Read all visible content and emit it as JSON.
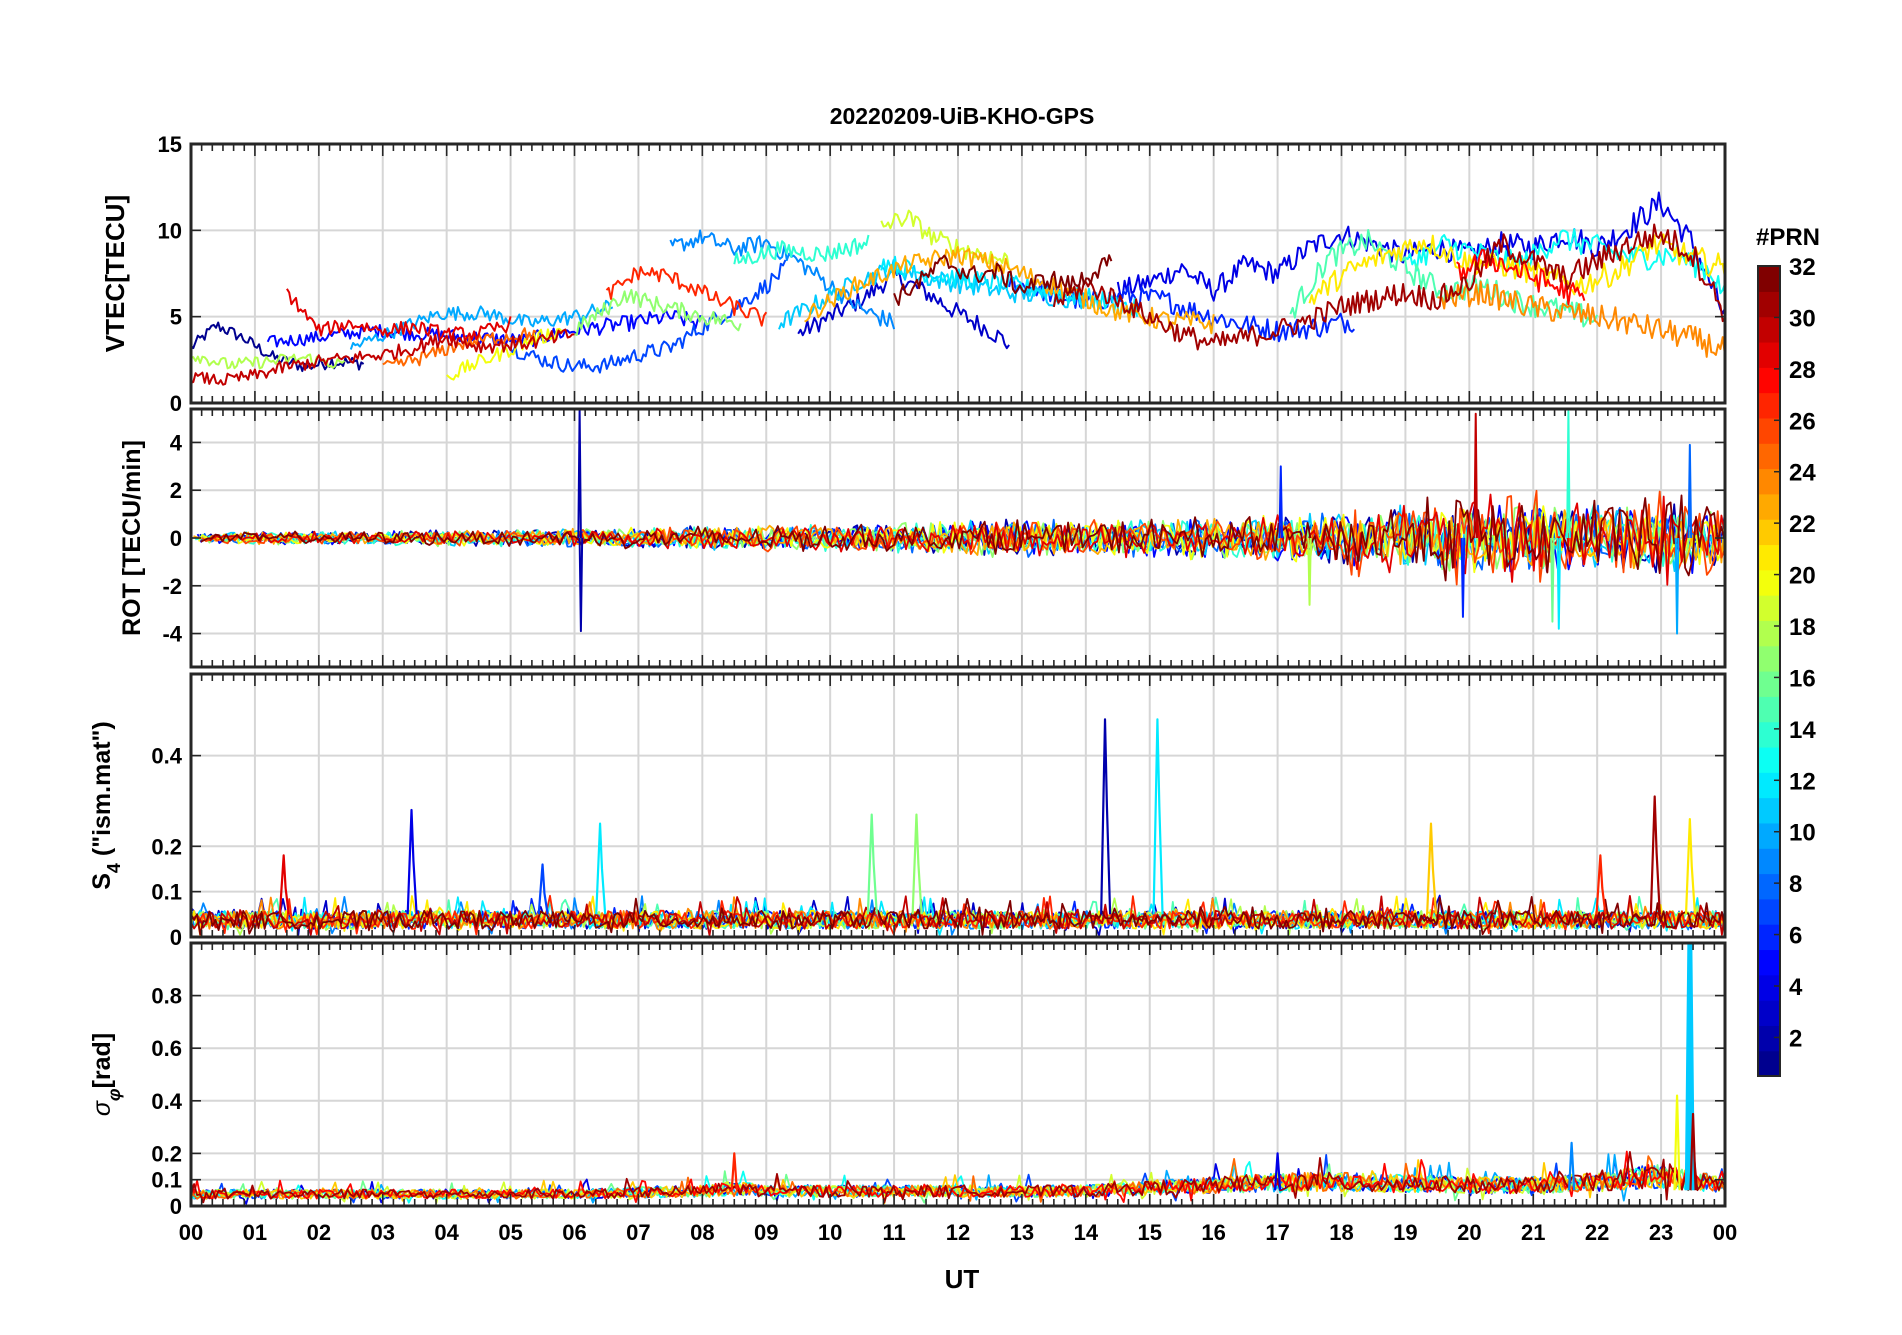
{
  "figure": {
    "title": "20220209-UiB-KHO-GPS",
    "xlabel": "UT",
    "x_ticks": [
      "00",
      "01",
      "02",
      "03",
      "04",
      "05",
      "06",
      "07",
      "08",
      "09",
      "10",
      "11",
      "12",
      "13",
      "14",
      "15",
      "16",
      "17",
      "18",
      "19",
      "20",
      "21",
      "22",
      "23",
      "00"
    ],
    "xlim": [
      0,
      24
    ]
  },
  "colorbar": {
    "title": "#PRN",
    "range": [
      1,
      32
    ],
    "ticks": [
      2,
      4,
      6,
      8,
      10,
      12,
      14,
      16,
      18,
      20,
      22,
      24,
      26,
      28,
      30,
      32
    ],
    "colormap": "jet",
    "jet_stops": [
      "#00008f",
      "#0000ff",
      "#00ffff",
      "#ffff00",
      "#ff0000",
      "#800000"
    ]
  },
  "chart_data": [
    {
      "type": "line",
      "panel": "vtec",
      "ylabel": "VTEC[TECU]",
      "ylim": [
        0,
        15
      ],
      "y_ticks": [
        0,
        5,
        10,
        15
      ],
      "grid": true,
      "series": [
        {
          "prn": 1,
          "x": [
            0.0,
            0.4,
            0.8,
            1.3,
            1.8,
            2.2,
            2.7
          ],
          "y": [
            3.2,
            4.5,
            3.8,
            2.6,
            2.1,
            2.4,
            2.3
          ]
        },
        {
          "prn": 3,
          "x": [
            9.5,
            10.0,
            10.5,
            11.0,
            11.5,
            12.0,
            12.5,
            12.8
          ],
          "y": [
            4.0,
            5.0,
            6.0,
            7.4,
            6.4,
            5.2,
            4.2,
            3.4
          ]
        },
        {
          "prn": 4,
          "x": [
            14.5,
            15.0,
            15.5,
            16.0,
            16.5,
            17.0,
            17.5,
            18.0,
            18.5,
            19.0,
            19.5,
            20.0,
            20.5,
            21.0,
            21.5,
            22.0,
            22.5,
            23.0,
            23.5,
            24.0
          ],
          "y": [
            6.5,
            7.0,
            7.8,
            6.5,
            8.0,
            7.5,
            9.0,
            9.8,
            9.2,
            8.5,
            9.0,
            8.6,
            9.2,
            9.0,
            9.8,
            9.0,
            10.2,
            11.6,
            9.2,
            5.0
          ]
        },
        {
          "prn": 5,
          "x": [
            1.2,
            2.0,
            2.8,
            3.6,
            4.4,
            5.2,
            6.0,
            6.8,
            7.5,
            8.0
          ],
          "y": [
            3.5,
            3.8,
            4.2,
            4.0,
            3.8,
            3.6,
            4.2,
            4.6,
            5.0,
            4.6
          ]
        },
        {
          "prn": 6,
          "x": [
            12.8,
            13.4,
            14.0,
            14.6,
            15.2,
            15.8,
            16.4,
            17.0,
            17.6,
            18.2
          ],
          "y": [
            7.0,
            6.4,
            5.8,
            6.2,
            6.0,
            5.2,
            4.6,
            4.2,
            4.4,
            4.8
          ]
        },
        {
          "prn": 7,
          "x": [
            5.0,
            5.5,
            6.0,
            6.5,
            7.0,
            7.5,
            8.0,
            8.5,
            9.0,
            9.3
          ],
          "y": [
            3.2,
            2.5,
            2.1,
            2.2,
            2.8,
            3.2,
            4.4,
            5.5,
            6.8,
            7.8
          ]
        },
        {
          "prn": 9,
          "x": [
            7.5,
            8.0,
            8.5,
            9.0,
            9.5,
            10.0,
            10.5,
            11.0
          ],
          "y": [
            9.0,
            9.6,
            8.9,
            9.3,
            8.2,
            6.8,
            5.4,
            4.6
          ]
        },
        {
          "prn": 10,
          "x": [
            2.5,
            3.2,
            3.9,
            4.6,
            5.3,
            6.0,
            6.6
          ],
          "y": [
            3.2,
            4.2,
            5.2,
            5.2,
            4.6,
            5.0,
            5.6
          ]
        },
        {
          "prn": 11,
          "x": [
            9.2,
            9.8,
            10.4,
            11.0,
            11.6,
            12.2,
            12.8,
            13.4,
            14.0
          ],
          "y": [
            4.6,
            5.8,
            7.0,
            7.8,
            7.2,
            6.8,
            6.4,
            6.2,
            6.0
          ]
        },
        {
          "prn": 12,
          "x": [
            10.8,
            11.4,
            12.0,
            12.6,
            13.2,
            13.8,
            14.4,
            14.8
          ],
          "y": [
            8.2,
            7.6,
            7.2,
            7.0,
            6.6,
            6.2,
            5.8,
            5.4
          ]
        },
        {
          "prn": 13,
          "x": [
            19.0,
            19.6,
            20.2,
            20.8,
            21.4,
            22.0,
            22.6,
            23.2,
            23.8,
            24.0
          ],
          "y": [
            8.0,
            9.2,
            8.6,
            8.0,
            9.6,
            9.0,
            8.4,
            8.6,
            7.6,
            6.2
          ]
        },
        {
          "prn": 14,
          "x": [
            8.5,
            9.2,
            9.9,
            10.6
          ],
          "y": [
            8.2,
            8.9,
            8.6,
            9.3
          ]
        },
        {
          "prn": 15,
          "x": [
            17.2,
            17.8,
            18.4,
            19.0,
            19.6,
            20.2,
            20.8,
            21.4,
            22.0
          ],
          "y": [
            5.2,
            8.4,
            9.4,
            7.8,
            6.4,
            6.8,
            5.8,
            5.4,
            4.8
          ]
        },
        {
          "prn": 17,
          "x": [
            6.0,
            6.4,
            6.8,
            7.2,
            7.6,
            8.0,
            8.6
          ],
          "y": [
            4.2,
            5.2,
            6.3,
            5.8,
            5.4,
            5.0,
            4.6
          ]
        },
        {
          "prn": 18,
          "x": [
            0.0,
            0.6,
            1.2,
            1.8,
            2.4
          ],
          "y": [
            2.8,
            2.2,
            2.4,
            2.6,
            2.2
          ]
        },
        {
          "prn": 19,
          "x": [
            10.8,
            11.2,
            11.6,
            12.0,
            12.4,
            12.8
          ],
          "y": [
            10.2,
            10.8,
            9.6,
            9.0,
            8.6,
            8.2
          ]
        },
        {
          "prn": 20,
          "x": [
            4.0,
            4.4,
            4.8,
            5.3,
            5.8
          ],
          "y": [
            1.5,
            2.2,
            2.8,
            3.6,
            4.2
          ]
        },
        {
          "prn": 21,
          "x": [
            17.5,
            18.1,
            18.7,
            19.3,
            19.9,
            20.5,
            21.1,
            21.7,
            22.3,
            22.9,
            23.5,
            24.0
          ],
          "y": [
            6.0,
            7.6,
            8.6,
            9.4,
            8.2,
            8.0,
            7.4,
            6.8,
            7.6,
            9.2,
            8.4,
            7.8
          ]
        },
        {
          "prn": 23,
          "x": [
            9.6,
            10.4,
            11.2,
            12.0,
            12.8,
            13.6,
            14.4,
            15.2,
            16.0
          ],
          "y": [
            5.0,
            6.8,
            8.0,
            8.6,
            7.8,
            6.6,
            5.4,
            4.8,
            4.6
          ]
        },
        {
          "prn": 24,
          "x": [
            19.5,
            20.2,
            20.9,
            21.6,
            22.3,
            23.0,
            23.6,
            24.0
          ],
          "y": [
            6.0,
            6.4,
            5.6,
            5.2,
            4.8,
            4.2,
            3.6,
            3.0
          ]
        },
        {
          "prn": 25,
          "x": [
            3.0,
            3.6,
            4.2,
            4.8,
            5.4
          ],
          "y": [
            2.0,
            2.6,
            3.4,
            3.8,
            4.0
          ]
        },
        {
          "prn": 27,
          "x": [
            6.5,
            7.0,
            7.4,
            7.8,
            8.2,
            8.6,
            9.0
          ],
          "y": [
            6.2,
            7.6,
            7.4,
            6.8,
            6.0,
            5.4,
            4.8
          ]
        },
        {
          "prn": 28,
          "x": [
            19.8,
            20.3,
            20.8,
            21.3,
            21.8
          ],
          "y": [
            7.5,
            8.4,
            7.6,
            6.8,
            6.0
          ]
        },
        {
          "prn": 29,
          "x": [
            1.5,
            2.0,
            2.5,
            3.0,
            3.5,
            4.0,
            4.5,
            5.0
          ],
          "y": [
            6.4,
            4.2,
            4.6,
            4.2,
            4.4,
            4.0,
            4.0,
            4.6
          ]
        },
        {
          "prn": 30,
          "x": [
            0.0,
            0.5,
            1.0,
            1.5,
            2.0,
            2.5,
            3.0,
            3.5,
            4.0,
            4.5,
            5.0,
            5.5,
            6.0
          ],
          "y": [
            1.5,
            1.3,
            1.6,
            2.1,
            2.4,
            2.6,
            2.8,
            3.2,
            3.8,
            3.3,
            3.4,
            3.6,
            4.0
          ]
        },
        {
          "prn": 31,
          "x": [
            13.5,
            14.0,
            14.5,
            15.0,
            15.5,
            16.0,
            16.5,
            17.0,
            17.5,
            18.0,
            18.5,
            19.0,
            19.5,
            20.0,
            20.5,
            21.0,
            21.5,
            22.0,
            22.5,
            23.0,
            23.5,
            24.0
          ],
          "y": [
            5.8,
            6.8,
            6.0,
            5.0,
            4.0,
            3.4,
            3.8,
            4.2,
            4.8,
            5.6,
            6.0,
            6.4,
            6.0,
            7.0,
            9.2,
            8.2,
            7.2,
            8.2,
            9.2,
            9.8,
            8.6,
            5.2
          ]
        },
        {
          "prn": 32,
          "x": [
            11.0,
            11.4,
            11.8,
            12.2,
            12.6,
            13.0,
            13.4,
            13.8,
            14.2,
            14.4
          ],
          "y": [
            6.0,
            7.0,
            8.2,
            7.4,
            7.6,
            6.6,
            7.2,
            6.8,
            7.8,
            8.0
          ]
        }
      ]
    },
    {
      "type": "line",
      "panel": "rot",
      "ylabel": "ROT [TECU/min]",
      "ylim": [
        -5.4,
        5.4
      ],
      "y_ticks": [
        -4,
        -2,
        0,
        2,
        4
      ],
      "grid": true,
      "envelope": {
        "x": [
          0,
          2,
          4,
          6,
          8,
          10,
          12,
          13,
          14,
          16,
          18,
          19,
          20,
          21,
          22,
          23,
          24
        ],
        "amplitude": [
          0.2,
          0.25,
          0.3,
          0.35,
          0.45,
          0.5,
          0.6,
          0.8,
          0.7,
          0.8,
          1.0,
          1.2,
          1.4,
          1.3,
          1.2,
          1.4,
          1.2
        ]
      },
      "spikes": [
        {
          "prn": 2,
          "x": 6.08,
          "y": 5.4
        },
        {
          "prn": 2,
          "x": 6.1,
          "y": -3.9
        },
        {
          "prn": 6,
          "x": 17.05,
          "y": 3.0
        },
        {
          "prn": 30,
          "x": 20.1,
          "y": 5.2
        },
        {
          "prn": 14,
          "x": 21.55,
          "y": 5.3
        },
        {
          "prn": 12,
          "x": 21.4,
          "y": -3.8
        },
        {
          "prn": 16,
          "x": 21.3,
          "y": -3.5
        },
        {
          "prn": 10,
          "x": 23.25,
          "y": -4.0
        },
        {
          "prn": 8,
          "x": 23.45,
          "y": 3.9
        },
        {
          "prn": 6,
          "x": 19.9,
          "y": -3.3
        },
        {
          "prn": 18,
          "x": 17.5,
          "y": -2.8
        }
      ]
    },
    {
      "type": "line",
      "panel": "s4",
      "ylabel": "S4 (\"ism.mat\")",
      "ylabel_main": "S",
      "ylabel_sub": "4",
      "ylabel_rest": " (\"ism.mat\")",
      "ylim": [
        0,
        0.58
      ],
      "y_ticks": [
        0,
        0.1,
        0.2,
        0.4
      ],
      "grid": true,
      "baseline": {
        "mean": 0.03,
        "spread": 0.04
      },
      "spikes": [
        {
          "prn": 4,
          "x": 3.45,
          "y": 0.28
        },
        {
          "prn": 12,
          "x": 6.4,
          "y": 0.25
        },
        {
          "prn": 16,
          "x": 10.65,
          "y": 0.27
        },
        {
          "prn": 17,
          "x": 11.35,
          "y": 0.27
        },
        {
          "prn": 2,
          "x": 14.3,
          "y": 0.48
        },
        {
          "prn": 12,
          "x": 15.12,
          "y": 0.48
        },
        {
          "prn": 22,
          "x": 19.4,
          "y": 0.25
        },
        {
          "prn": 31,
          "x": 22.9,
          "y": 0.31
        },
        {
          "prn": 21,
          "x": 23.45,
          "y": 0.26
        },
        {
          "prn": 29,
          "x": 1.45,
          "y": 0.18
        },
        {
          "prn": 7,
          "x": 5.5,
          "y": 0.16
        },
        {
          "prn": 27,
          "x": 22.05,
          "y": 0.18
        }
      ]
    },
    {
      "type": "line",
      "panel": "sigma_phi",
      "ylabel": "σφ[rad]",
      "ylabel_main": "σ",
      "ylabel_sub": "φ",
      "ylabel_rest": "[rad]",
      "ylim": [
        0,
        1.0
      ],
      "y_ticks": [
        0,
        0.1,
        0.2,
        0.4,
        0.6,
        0.8
      ],
      "grid": true,
      "baseline": {
        "x": [
          0,
          6,
          8,
          8.5,
          9,
          12,
          14,
          15,
          16,
          17,
          18,
          20,
          21,
          22,
          23,
          24
        ],
        "mean": [
          0.04,
          0.04,
          0.05,
          0.06,
          0.05,
          0.05,
          0.05,
          0.06,
          0.07,
          0.08,
          0.08,
          0.07,
          0.07,
          0.08,
          0.1,
          0.07
        ]
      },
      "spikes": [
        {
          "prn": 11,
          "x": 23.45,
          "y": 1.0
        },
        {
          "prn": 20,
          "x": 23.25,
          "y": 0.42
        },
        {
          "prn": 27,
          "x": 8.5,
          "y": 0.2
        },
        {
          "prn": 31,
          "x": 23.5,
          "y": 0.35
        },
        {
          "prn": 4,
          "x": 17.0,
          "y": 0.2
        },
        {
          "prn": 9,
          "x": 21.6,
          "y": 0.24
        }
      ]
    }
  ]
}
